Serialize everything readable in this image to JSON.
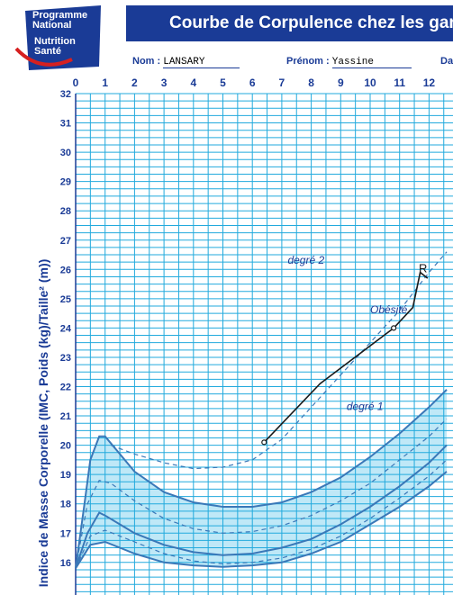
{
  "logo": {
    "line1": "Programme",
    "line2": "National",
    "line3": "Nutrition",
    "line4": "Santé",
    "colors": {
      "blue": "#1a3b96",
      "red": "#d62020"
    }
  },
  "title": "Courbe de Corpulence chez les garço",
  "patient": {
    "nom_label": "Nom :",
    "nom_value": "LANSARY",
    "prenom_label": "Prénom :",
    "prenom_value": "Yassine",
    "date_label": "Da"
  },
  "chart_data": {
    "type": "line",
    "title": "Courbe de Corpulence chez les garço",
    "xlabel": "",
    "ylabel": "Indice de Masse Corporelle (IMC, Poids (kg)/Taille² (m))",
    "xlim": [
      0,
      12.6
    ],
    "ylim": [
      15.8,
      32
    ],
    "x_ticks": [
      0,
      1,
      2,
      3,
      4,
      5,
      6,
      7,
      8,
      9,
      10,
      11,
      12
    ],
    "y_ticks": [
      16,
      17,
      18,
      19,
      20,
      21,
      22,
      23,
      24,
      25,
      26,
      27,
      28,
      29,
      30,
      31,
      32
    ],
    "grid": true,
    "colors": {
      "grid": "#22aadd",
      "band": "#bfe8f7",
      "curve": "#3a78b8",
      "patient": "#1a1a1a",
      "label": "#1a3b96"
    },
    "annotations": [
      {
        "text": "degré 2",
        "x": 7.2,
        "y": 26.2
      },
      {
        "text": "Obésité",
        "x": 10.0,
        "y": 24.5
      },
      {
        "text": "degré 1",
        "x": 9.2,
        "y": 21.2
      }
    ],
    "patient_marker": {
      "text": "R",
      "x": 11.65,
      "y": 25.9
    },
    "series": [
      {
        "style": "dashed",
        "x": [
          1.2,
          2,
          3,
          4,
          5,
          6,
          7,
          8,
          9,
          10,
          11,
          12,
          12.6
        ],
        "y": [
          20.0,
          19.7,
          19.4,
          19.2,
          19.25,
          19.5,
          20.2,
          21.3,
          22.4,
          23.5,
          24.6,
          25.9,
          26.6
        ]
      },
      {
        "style": "solid",
        "x": [
          0,
          0.3,
          0.5,
          0.8,
          1,
          1.5,
          2,
          3,
          4,
          5,
          6,
          7,
          8,
          9,
          10,
          11,
          12,
          12.6
        ],
        "y": [
          15.8,
          18.0,
          19.5,
          20.3,
          20.3,
          19.7,
          19.1,
          18.4,
          18.05,
          17.9,
          17.9,
          18.05,
          18.4,
          18.9,
          19.6,
          20.4,
          21.3,
          21.9
        ]
      },
      {
        "style": "solid",
        "x": [
          0,
          0.4,
          0.8,
          1,
          1.5,
          2,
          3,
          4,
          5,
          6,
          7,
          8,
          9,
          10,
          11,
          12,
          12.6
        ],
        "y": [
          15.8,
          17.0,
          17.7,
          17.6,
          17.3,
          17.0,
          16.6,
          16.35,
          16.25,
          16.3,
          16.5,
          16.8,
          17.3,
          17.9,
          18.6,
          19.4,
          20.0
        ]
      },
      {
        "style": "solid",
        "x": [
          0,
          0.5,
          1,
          1.5,
          2,
          3,
          4,
          5,
          6,
          7,
          8,
          9,
          10,
          11,
          12,
          12.6
        ],
        "y": [
          15.8,
          16.6,
          16.7,
          16.5,
          16.3,
          16.0,
          15.9,
          15.85,
          15.9,
          16.0,
          16.3,
          16.7,
          17.3,
          17.9,
          18.6,
          19.1
        ]
      },
      {
        "style": "dashed",
        "x": [
          0,
          0.4,
          0.8,
          1.2,
          2,
          3,
          4,
          5,
          6,
          7,
          8,
          9,
          10,
          11,
          12,
          12.6
        ],
        "y": [
          15.8,
          18.0,
          18.8,
          18.7,
          18.1,
          17.5,
          17.15,
          17.0,
          17.05,
          17.25,
          17.6,
          18.1,
          18.7,
          19.5,
          20.3,
          20.9
        ]
      },
      {
        "style": "dashed",
        "x": [
          0,
          0.5,
          1,
          2,
          3,
          4,
          5,
          6,
          7,
          8,
          9,
          10,
          11,
          12,
          12.6
        ],
        "y": [
          15.8,
          16.9,
          17.1,
          16.7,
          16.3,
          16.05,
          15.95,
          16.0,
          16.15,
          16.45,
          16.9,
          17.5,
          18.2,
          18.95,
          19.5
        ]
      },
      {
        "style": "patient",
        "x": [
          6.4,
          8.3,
          10.8,
          11.45,
          11.7,
          11.95
        ],
        "y": [
          20.1,
          22.1,
          24.0,
          24.7,
          25.9,
          25.7
        ]
      }
    ]
  }
}
